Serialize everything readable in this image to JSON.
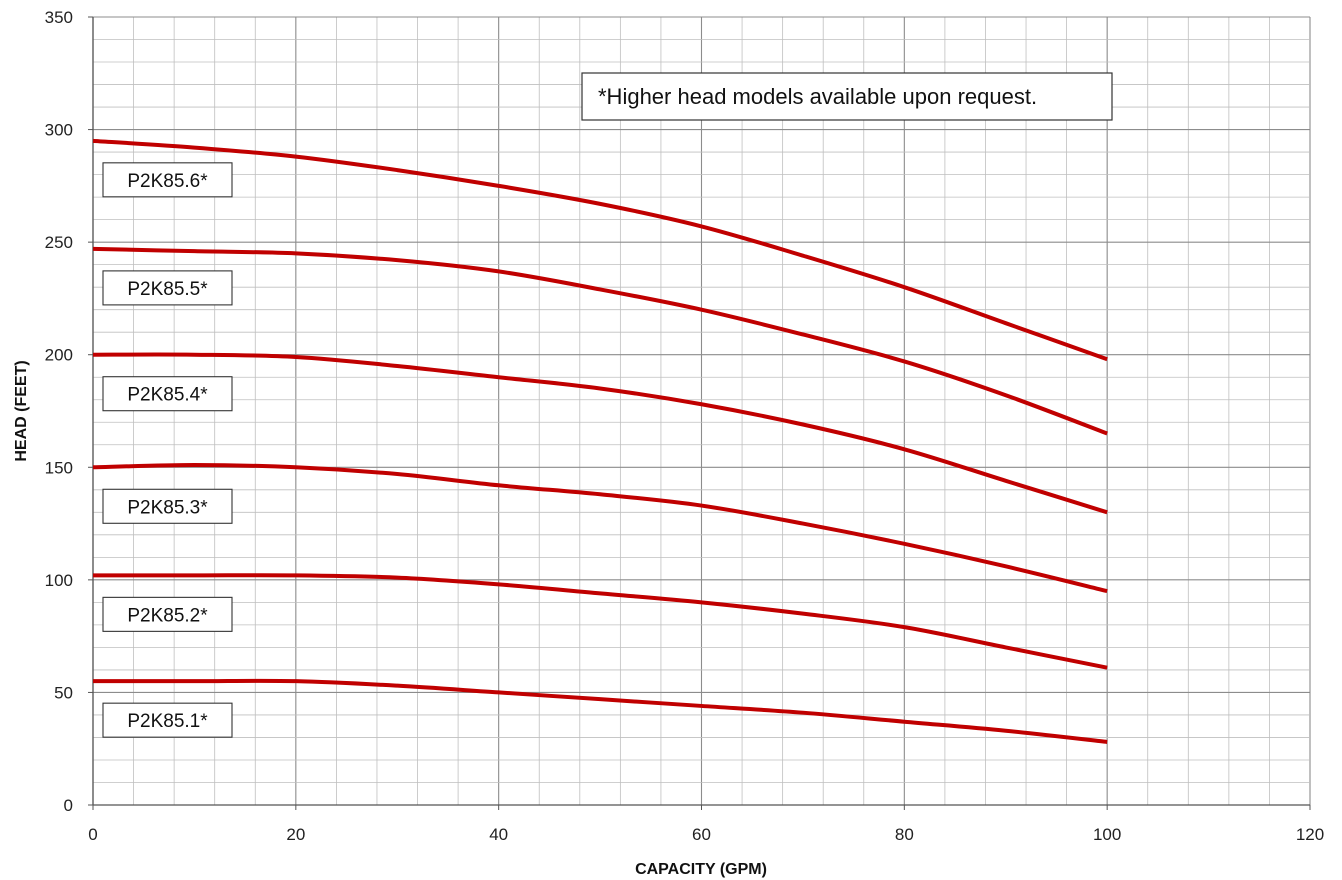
{
  "chart_data": {
    "type": "line",
    "title": "",
    "xlabel": "CAPACITY (GPM)",
    "ylabel": "HEAD (FEET)",
    "xlim": [
      0,
      120
    ],
    "ylim": [
      0,
      350
    ],
    "x_ticks": [
      0,
      20,
      40,
      60,
      80,
      100,
      120
    ],
    "y_ticks": [
      0,
      50,
      100,
      150,
      200,
      250,
      300,
      350
    ],
    "x_minor_step": 4,
    "y_minor_step": 10,
    "grid": true,
    "line_color": "#c00000",
    "grid_color": "#bfbfbf",
    "annotation": "*Higher head models available upon request.",
    "series": [
      {
        "name": "P2K85.6*",
        "x": [
          0,
          10,
          20,
          30,
          40,
          50,
          60,
          70,
          80,
          90,
          100
        ],
        "y": [
          295,
          292,
          288,
          282,
          275,
          267,
          257,
          244,
          230,
          214,
          198
        ]
      },
      {
        "name": "P2K85.5*",
        "x": [
          0,
          10,
          20,
          30,
          40,
          50,
          60,
          70,
          80,
          90,
          100
        ],
        "y": [
          247,
          246,
          245,
          242,
          237,
          229,
          220,
          209,
          197,
          182,
          165
        ]
      },
      {
        "name": "P2K85.4*",
        "x": [
          0,
          10,
          20,
          30,
          40,
          50,
          60,
          70,
          80,
          90,
          100
        ],
        "y": [
          200,
          200,
          199,
          195,
          190,
          185,
          178,
          169,
          158,
          144,
          130
        ]
      },
      {
        "name": "P2K85.3*",
        "x": [
          0,
          10,
          20,
          30,
          40,
          50,
          60,
          70,
          80,
          90,
          100
        ],
        "y": [
          150,
          151,
          150,
          147,
          142,
          138,
          133,
          125,
          116,
          106,
          95
        ]
      },
      {
        "name": "P2K85.2*",
        "x": [
          0,
          10,
          20,
          30,
          40,
          50,
          60,
          70,
          80,
          90,
          100
        ],
        "y": [
          102,
          102,
          102,
          101,
          98,
          94,
          90,
          85,
          79,
          70,
          61
        ]
      },
      {
        "name": "P2K85.1*",
        "x": [
          0,
          10,
          20,
          30,
          40,
          50,
          60,
          70,
          80,
          90,
          100
        ],
        "y": [
          55,
          55,
          55,
          53,
          50,
          47,
          44,
          41,
          37,
          33,
          28
        ]
      }
    ]
  }
}
